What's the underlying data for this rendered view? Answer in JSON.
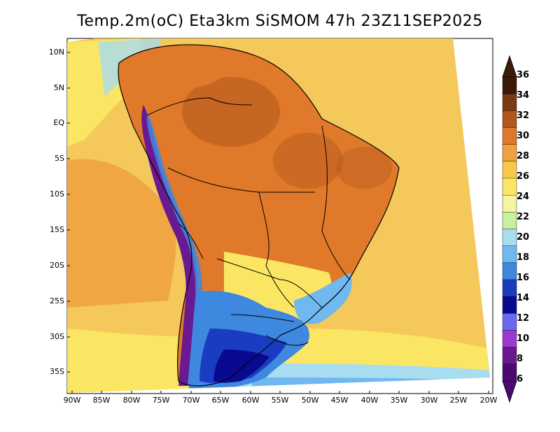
{
  "title": "Temp.2m(oC) Eta3km SiSMOM 47h 23Z11SEP2025",
  "lat_labels": [
    "10N",
    "5N",
    "EQ",
    "5S",
    "10S",
    "15S",
    "20S",
    "25S",
    "30S",
    "35S"
  ],
  "lon_labels": [
    "90W",
    "85W",
    "80W",
    "75W",
    "70W",
    "65W",
    "60W",
    "55W",
    "50W",
    "45W",
    "40W",
    "35W",
    "30W",
    "25W",
    "20W"
  ],
  "colorbar": {
    "labels": [
      "36",
      "34",
      "32",
      "30",
      "28",
      "26",
      "24",
      "22",
      "20",
      "18",
      "16",
      "14",
      "12",
      "10",
      "8",
      "6"
    ],
    "colors": [
      "#3b1a08",
      "#7a3a12",
      "#b3561c",
      "#e0782a",
      "#f0a040",
      "#f7c84a",
      "#fbe663",
      "#f5f5a0",
      "#c8f0a0",
      "#a8dcf0",
      "#70b8f0",
      "#3f88e0",
      "#1a3cc0",
      "#0a0a90",
      "#6a6af0",
      "#9a3ad0",
      "#6a1a90",
      "#4a0a70"
    ]
  },
  "legend_caption": ""
}
